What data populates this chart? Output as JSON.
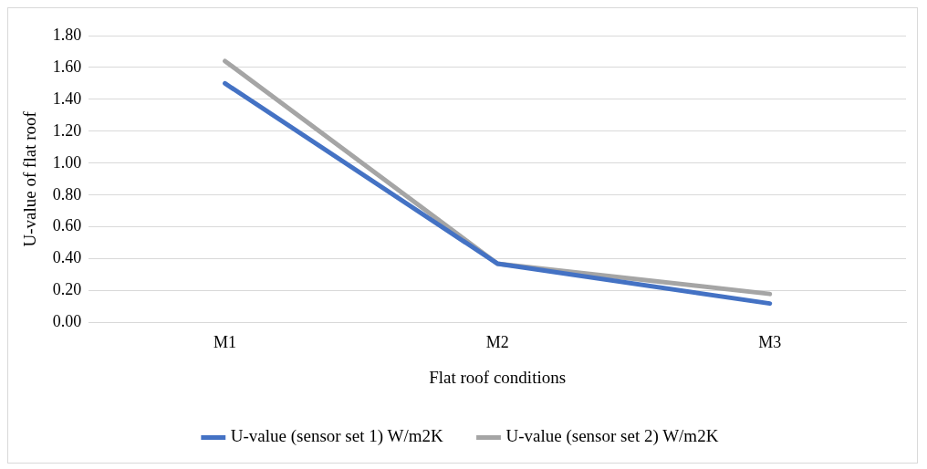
{
  "chart_data": {
    "type": "line",
    "xlabel": "Flat roof conditions",
    "ylabel": "U-value of flat roof",
    "categories": [
      "M1",
      "M2",
      "M3"
    ],
    "series": [
      {
        "name": "U-value (sensor set 1) W/m2K",
        "color": "#4472c4",
        "values": [
          1.5,
          0.37,
          0.12
        ]
      },
      {
        "name": "U-value (sensor set 2) W/m2K",
        "color": "#a5a5a5",
        "values": [
          1.64,
          0.37,
          0.18
        ]
      }
    ],
    "ylim": [
      0,
      1.8
    ],
    "yticks": [
      {
        "value": 0,
        "label": "0.00"
      },
      {
        "value": 0.2,
        "label": "0.20"
      },
      {
        "value": 0.4,
        "label": "0.40"
      },
      {
        "value": 0.6,
        "label": "0.60"
      },
      {
        "value": 0.8,
        "label": "0.80"
      },
      {
        "value": 1,
        "label": "1.00"
      },
      {
        "value": 1.2,
        "label": "1.20"
      },
      {
        "value": 1.4,
        "label": "1.40"
      },
      {
        "value": 1.6,
        "label": "1.60"
      },
      {
        "value": 1.8,
        "label": "1.80"
      }
    ],
    "grid": "y",
    "legend": "bottom",
    "marker": "none",
    "line_style": "solid"
  }
}
